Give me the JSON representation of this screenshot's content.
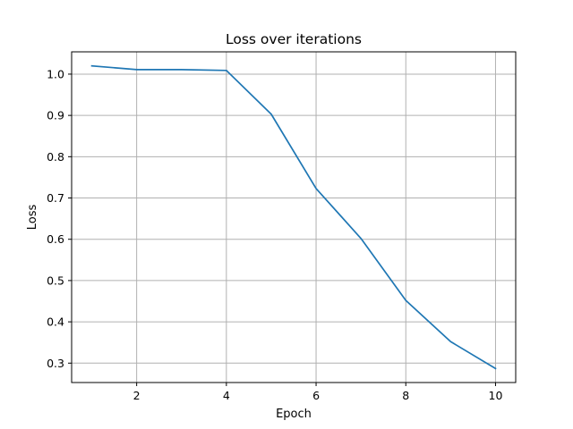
{
  "chart_data": {
    "type": "line",
    "title": "Loss over iterations",
    "xlabel": "Epoch",
    "ylabel": "Loss",
    "x": [
      1,
      2,
      3,
      4,
      5,
      6,
      7,
      8,
      9,
      10
    ],
    "series": [
      {
        "values": [
          1.02,
          1.011,
          1.011,
          1.009,
          0.903,
          0.723,
          0.602,
          0.452,
          0.352,
          0.287
        ],
        "color": "#1f77b4"
      }
    ],
    "xlim": [
      0.55,
      10.45
    ],
    "ylim": [
      0.253,
      1.054
    ],
    "xticks": [
      2,
      4,
      6,
      8,
      10
    ],
    "yticks": [
      0.3,
      0.4,
      0.5,
      0.6,
      0.7,
      0.8,
      0.9,
      1.0
    ],
    "xtick_labels": [
      "2",
      "4",
      "6",
      "8",
      "10"
    ],
    "ytick_labels": [
      "0.3",
      "0.4",
      "0.5",
      "0.6",
      "0.7",
      "0.8",
      "0.9",
      "1.0"
    ],
    "grid": true
  }
}
